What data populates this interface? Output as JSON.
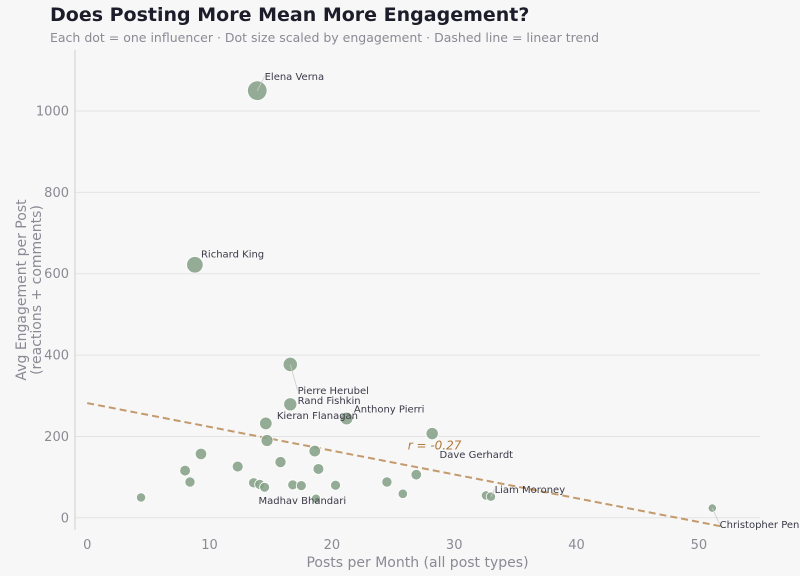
{
  "title": "Does Posting More Mean More Engagement?",
  "subtitle": "Each dot = one influencer  ·  Dot size scaled by engagement  ·  Dashed line = linear trend",
  "colors": {
    "dot": "#86a288",
    "trend": "#c49a6c",
    "grid": "#e3e3e3",
    "text": "#3a3a48",
    "muted": "#8a8a94"
  },
  "chart_data": {
    "type": "scatter",
    "xlabel": "Posts per Month (all post types)",
    "ylabel_lines": [
      "Avg Engagement per Post",
      "(reactions + comments)"
    ],
    "xlim": [
      -1,
      55
    ],
    "ylim": [
      -30,
      1150
    ],
    "x_ticks": [
      0,
      10,
      20,
      30,
      40,
      50
    ],
    "y_ticks": [
      0,
      200,
      400,
      600,
      800,
      1000
    ],
    "grid": "horizontal",
    "trend": {
      "x": [
        0,
        52
      ],
      "y": [
        282,
        -22
      ],
      "label": "r = -0.27",
      "label_x": 26.2,
      "label_y": 168
    },
    "points": [
      {
        "x": 13.9,
        "y": 1050,
        "name": "Elena Verna"
      },
      {
        "x": 8.8,
        "y": 622,
        "name": "Richard King"
      },
      {
        "x": 16.6,
        "y": 377,
        "name": "Pierre Herubel"
      },
      {
        "x": 16.6,
        "y": 279,
        "name": "Rand Fishkin"
      },
      {
        "x": 14.6,
        "y": 232,
        "name": "Kieran Flanagan"
      },
      {
        "x": 21.2,
        "y": 244,
        "name": "Anthony Pierri"
      },
      {
        "x": 28.2,
        "y": 207,
        "name": "Dave Gerhardt"
      },
      {
        "x": 14.7,
        "y": 190
      },
      {
        "x": 9.3,
        "y": 157
      },
      {
        "x": 18.6,
        "y": 164
      },
      {
        "x": 8.0,
        "y": 116
      },
      {
        "x": 12.3,
        "y": 126
      },
      {
        "x": 15.8,
        "y": 137
      },
      {
        "x": 18.9,
        "y": 120
      },
      {
        "x": 8.4,
        "y": 88
      },
      {
        "x": 4.4,
        "y": 50
      },
      {
        "x": 13.6,
        "y": 86
      },
      {
        "x": 14.1,
        "y": 82
      },
      {
        "x": 14.5,
        "y": 75,
        "name": "Madhav Bhandari"
      },
      {
        "x": 16.8,
        "y": 81
      },
      {
        "x": 17.5,
        "y": 79
      },
      {
        "x": 18.7,
        "y": 47
      },
      {
        "x": 20.3,
        "y": 80
      },
      {
        "x": 24.5,
        "y": 88
      },
      {
        "x": 25.8,
        "y": 59
      },
      {
        "x": 26.9,
        "y": 106
      },
      {
        "x": 32.6,
        "y": 55
      },
      {
        "x": 33.0,
        "y": 52,
        "name": "Liam Moroney"
      },
      {
        "x": 51.1,
        "y": 24,
        "name": "Christopher Penn"
      }
    ],
    "labels": [
      {
        "name": "Elena Verna",
        "x": 14.5,
        "y": 1085,
        "leader": true
      },
      {
        "name": "Richard King",
        "x": 9.3,
        "y": 648
      },
      {
        "name": "Pierre Herubel",
        "x": 17.2,
        "y": 313,
        "leader": true
      },
      {
        "name": "Rand Fishkin",
        "x": 17.2,
        "y": 288
      },
      {
        "name": "Kieran Flanagan",
        "x": 15.5,
        "y": 252
      },
      {
        "name": "Anthony Pierri",
        "x": 21.8,
        "y": 268
      },
      {
        "name": "Dave Gerhardt",
        "x": 28.8,
        "y": 156
      },
      {
        "name": "Madhav Bhandari",
        "x": 14.0,
        "y": 42
      },
      {
        "name": "Liam Moroney",
        "x": 33.3,
        "y": 70,
        "leader": true
      },
      {
        "name": "Christopher Penn",
        "x": 51.7,
        "y": -16,
        "leader": true
      }
    ]
  }
}
